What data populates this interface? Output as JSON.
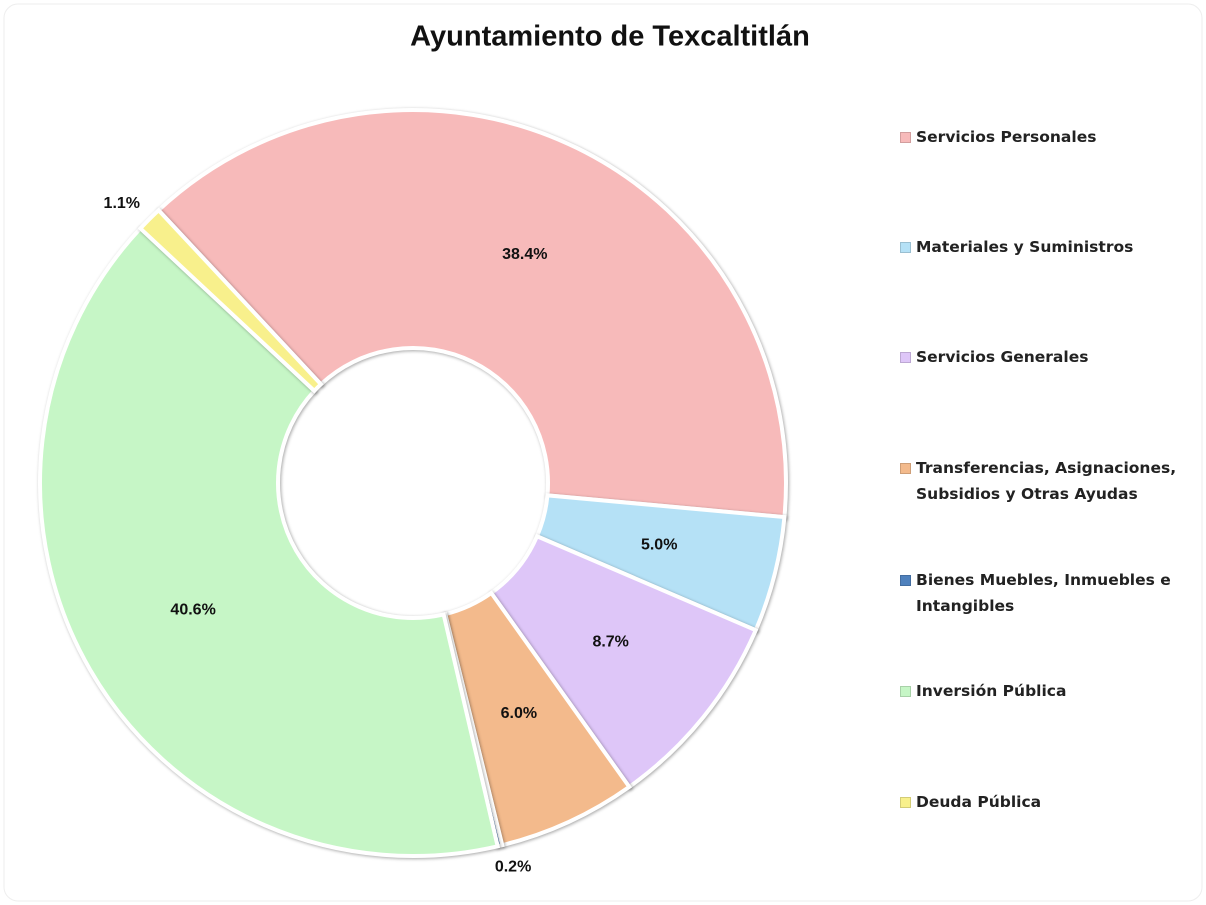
{
  "chart_data": {
    "type": "donut",
    "title": "Ayuntamiento de Texcaltitlán",
    "categories": [
      "Servicios Personales",
      "Materiales y Suministros",
      "Servicios Generales",
      "Transferencias, Asignaciones, Subsidios y Otras Ayudas",
      "Bienes Muebles, Inmuebles e Intangibles",
      "Inversión Pública",
      "Deuda Pública"
    ],
    "values": [
      38.4,
      5.0,
      8.7,
      6.0,
      0.2,
      40.6,
      1.1
    ],
    "value_labels": [
      "38.4%",
      "5.0%",
      "8.7%",
      "6.0%",
      "0.2%",
      "40.6%",
      "1.1%"
    ],
    "colors": [
      "#f7baba",
      "#b5e1f6",
      "#dec6f8",
      "#f3ba8c",
      "#4f81bd",
      "#c6f6c6",
      "#f8f08c"
    ],
    "legend": "right"
  }
}
